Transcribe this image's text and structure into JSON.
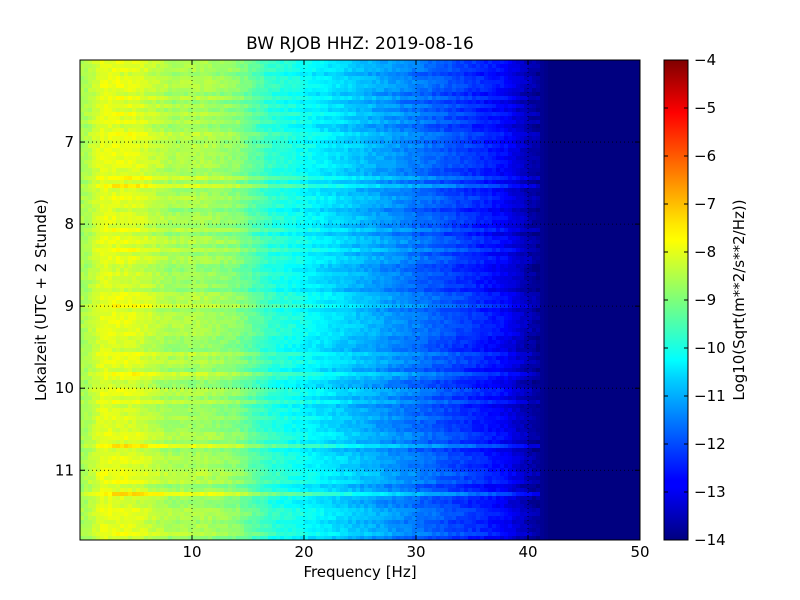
{
  "chart_data": {
    "type": "heatmap",
    "title": "BW RJOB HHZ: 2019-08-16",
    "xlabel": "Frequency [Hz]",
    "ylabel": "Lokalzeit (UTC + 2 Stunde)",
    "xlim": [
      0,
      50
    ],
    "ylim": [
      6.0,
      11.85
    ],
    "y_inverted": true,
    "grid": true,
    "x_ticks": [
      {
        "value": 10,
        "label": "10"
      },
      {
        "value": 20,
        "label": "20"
      },
      {
        "value": 30,
        "label": "30"
      },
      {
        "value": 40,
        "label": "40"
      },
      {
        "value": 50,
        "label": "50"
      }
    ],
    "y_ticks": [
      {
        "value": 7,
        "label": "7"
      },
      {
        "value": 8,
        "label": "8"
      },
      {
        "value": 9,
        "label": "9"
      },
      {
        "value": 10,
        "label": "10"
      },
      {
        "value": 11,
        "label": "11"
      }
    ],
    "colormap": "jet",
    "colorbar": {
      "label": "Log10(Sqrt(m**2/s**2/Hz))",
      "range": [
        -14,
        -4
      ],
      "ticks": [
        {
          "value": -4,
          "label": "−4"
        },
        {
          "value": -5,
          "label": "−5"
        },
        {
          "value": -6,
          "label": "−6"
        },
        {
          "value": -7,
          "label": "−7"
        },
        {
          "value": -8,
          "label": "−8"
        },
        {
          "value": -9,
          "label": "−9"
        },
        {
          "value": -10,
          "label": "−10"
        },
        {
          "value": -11,
          "label": "−11"
        },
        {
          "value": -12,
          "label": "−12"
        },
        {
          "value": -13,
          "label": "−13"
        },
        {
          "value": -14,
          "label": "−14"
        }
      ]
    },
    "spectral_profile": [
      {
        "freq": 0.5,
        "value": -8.6
      },
      {
        "freq": 2,
        "value": -8.0
      },
      {
        "freq": 5,
        "value": -8.1
      },
      {
        "freq": 8,
        "value": -8.6
      },
      {
        "freq": 11,
        "value": -8.6
      },
      {
        "freq": 14,
        "value": -8.9
      },
      {
        "freq": 17,
        "value": -9.8
      },
      {
        "freq": 20,
        "value": -10.2
      },
      {
        "freq": 25,
        "value": -10.9
      },
      {
        "freq": 30,
        "value": -11.6
      },
      {
        "freq": 35,
        "value": -12.3
      },
      {
        "freq": 38,
        "value": -12.8
      },
      {
        "freq": 40,
        "value": -13.5
      },
      {
        "freq": 42,
        "value": -14.0
      },
      {
        "freq": 50,
        "value": -14.0
      }
    ]
  }
}
